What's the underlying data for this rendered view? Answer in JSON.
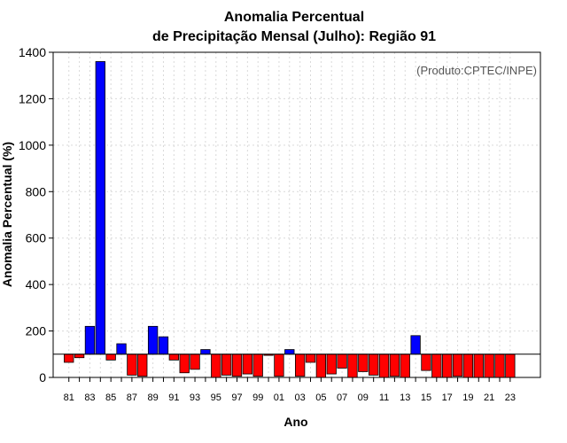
{
  "chart_data": {
    "type": "bar",
    "title_line1": "Anomalia Percentual",
    "title_line2": "de Precipitação Mensal (Julho): Região 91",
    "xlabel": "Ano",
    "ylabel": "Anomalia Percentual (%)",
    "credit": "(Produto:CPTEC/INPE)",
    "ylim": [
      0,
      1400
    ],
    "yticks": [
      0,
      200,
      400,
      600,
      800,
      1000,
      1200,
      1400
    ],
    "reference_line": 100,
    "grid": true,
    "colors": {
      "above": "#0000ff",
      "below": "#ff0000"
    },
    "categories": [
      "81",
      "82",
      "83",
      "84",
      "85",
      "86",
      "87",
      "88",
      "89",
      "90",
      "91",
      "92",
      "93",
      "94",
      "95",
      "96",
      "97",
      "98",
      "99",
      "00",
      "01",
      "02",
      "03",
      "04",
      "05",
      "06",
      "07",
      "08",
      "09",
      "10",
      "11",
      "12",
      "13",
      "14",
      "15",
      "16",
      "17",
      "18",
      "19",
      "20",
      "21",
      "22",
      "23"
    ],
    "x_tick_labels": [
      "81",
      "83",
      "85",
      "87",
      "89",
      "91",
      "93",
      "95",
      "97",
      "99",
      "01",
      "03",
      "05",
      "07",
      "09",
      "11",
      "13",
      "15",
      "17",
      "19",
      "21",
      "23"
    ],
    "values": [
      65,
      85,
      220,
      1360,
      75,
      145,
      10,
      5,
      220,
      175,
      75,
      20,
      35,
      120,
      0,
      10,
      5,
      15,
      5,
      95,
      5,
      120,
      5,
      65,
      0,
      15,
      40,
      0,
      25,
      10,
      0,
      5,
      0,
      180,
      30,
      0,
      0,
      5,
      0,
      0,
      0,
      0,
      0
    ]
  }
}
